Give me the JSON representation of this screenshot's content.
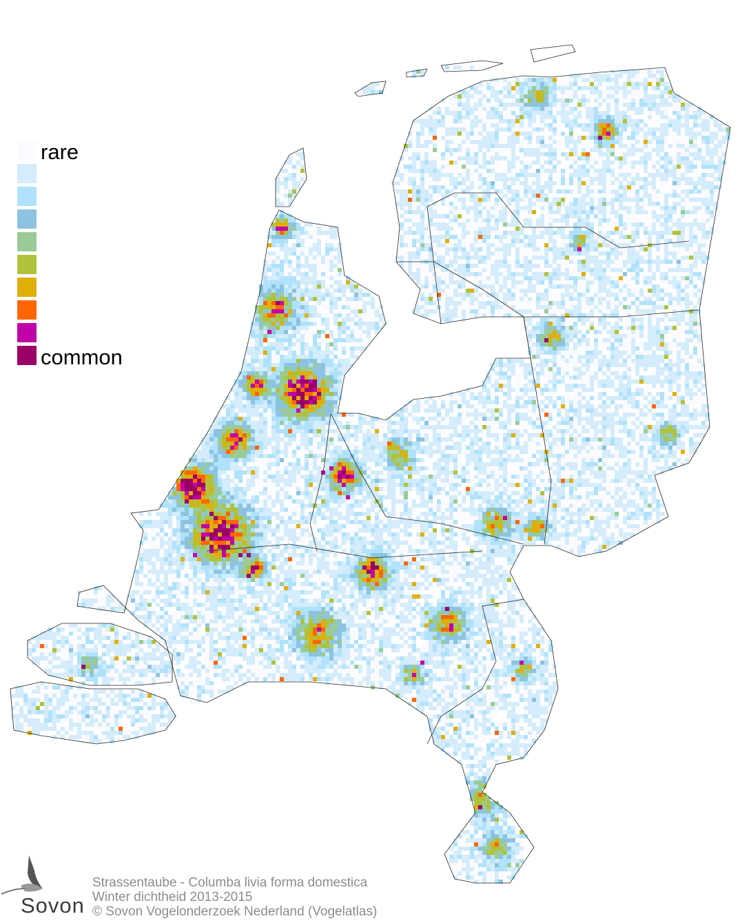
{
  "legend": {
    "low_label": "rare",
    "high_label": "common",
    "colors": [
      "#fbfbff",
      "#d4ecfb",
      "#b0e2fb",
      "#8cc3e0",
      "#9acb97",
      "#b0c23a",
      "#e0ae05",
      "#ff6600",
      "#c000a8",
      "#9a0066"
    ]
  },
  "footer": {
    "species": "Strassentaube - Columba livia forma domestica",
    "subtitle": "Winter dichtheid 2013-2015",
    "copyright": "© Sovon Vogelonderzoek Nederland (Vogelatlas)"
  },
  "logo": {
    "text": "Sovon"
  }
}
